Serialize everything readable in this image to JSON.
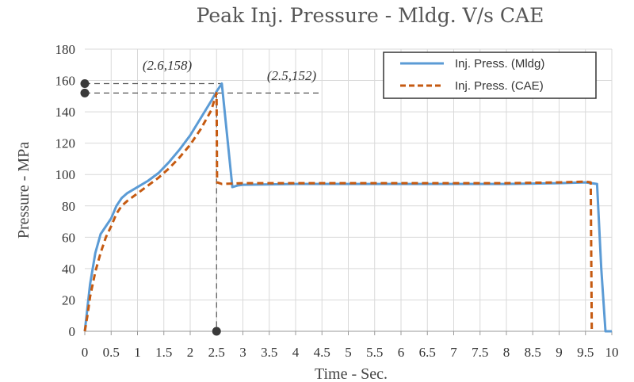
{
  "chart_data": {
    "type": "line",
    "title": "Peak Inj. Pressure - Mldg. V/s CAE",
    "xlabel": "Time - Sec.",
    "ylabel": "Pressure - MPa",
    "xlim": [
      0,
      10
    ],
    "ylim": [
      0,
      180
    ],
    "x_ticks": [
      "0",
      "0.5",
      "1",
      "1.5",
      "2",
      "2.5",
      "3",
      "3.5",
      "4",
      "4.5",
      "5",
      "5.5",
      "6",
      "6.5",
      "7",
      "7.5",
      "8",
      "8.5",
      "9",
      "9.5",
      "10"
    ],
    "y_ticks": [
      "0",
      "20",
      "40",
      "60",
      "80",
      "100",
      "120",
      "140",
      "160",
      "180"
    ],
    "grid": true,
    "legend_position": "top-right",
    "series": [
      {
        "name": "Inj.  Press. (Mldg)",
        "color": "#5b9bd5",
        "style": "solid",
        "x": [
          0,
          0.05,
          0.1,
          0.2,
          0.3,
          0.4,
          0.5,
          0.6,
          0.7,
          0.8,
          1.0,
          1.2,
          1.4,
          1.6,
          1.8,
          2.0,
          2.2,
          2.4,
          2.5,
          2.6,
          2.7,
          2.8,
          2.9,
          3.0,
          4.0,
          5.0,
          6.0,
          7.0,
          8.0,
          9.0,
          9.5,
          9.72,
          9.8,
          9.88,
          10.0
        ],
        "y": [
          0,
          15,
          30,
          50,
          62,
          67,
          72,
          80,
          85,
          88,
          92,
          96,
          101,
          108,
          116,
          125,
          136,
          147,
          153,
          158,
          125,
          92,
          93,
          93.5,
          94,
          94,
          94,
          94,
          94,
          94.5,
          95,
          94,
          40,
          0,
          0
        ]
      },
      {
        "name": "Inj. Press. (CAE)",
        "color": "#c55a11",
        "style": "dashed",
        "x": [
          0,
          0.05,
          0.1,
          0.2,
          0.3,
          0.4,
          0.5,
          0.6,
          0.7,
          0.8,
          1.0,
          1.2,
          1.4,
          1.6,
          1.8,
          2.0,
          2.2,
          2.4,
          2.5,
          2.51,
          2.6,
          3.0,
          4.0,
          5.0,
          6.0,
          7.0,
          8.0,
          9.0,
          9.5,
          9.6,
          9.62
        ],
        "y": [
          0,
          10,
          22,
          38,
          50,
          60,
          67,
          75,
          80,
          83,
          88,
          93,
          98,
          104,
          111,
          119,
          129,
          141,
          152,
          95,
          94,
          94.5,
          94.5,
          94.5,
          94.5,
          94.5,
          94.5,
          95,
          95.5,
          95,
          0
        ]
      }
    ],
    "annotations": [
      {
        "label": "(2.6,158)",
        "x": 2.6,
        "y": 158
      },
      {
        "label": "(2.5,152)",
        "x": 2.5,
        "y": 152
      }
    ]
  }
}
